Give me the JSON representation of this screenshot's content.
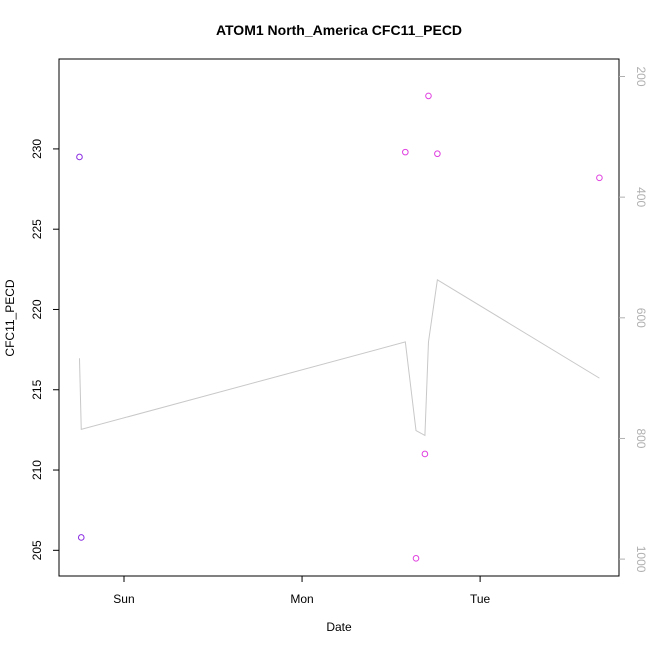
{
  "chart_data": {
    "type": "scatter",
    "title": "ATOM1 North_America CFC11_PECD",
    "xlabel": "Date",
    "ylabel": "CFC11_PECD",
    "x_ticks": [
      "Sun",
      "Mon",
      "Tue"
    ],
    "y_ticks": [
      205,
      210,
      215,
      220,
      225,
      230
    ],
    "y_right_ticks": [
      200,
      400,
      600,
      800,
      1000
    ],
    "xlim_days": [
      -0.365,
      2.78
    ],
    "ylim": [
      203.4,
      235.6
    ],
    "y_right_lim": [
      1028,
      171
    ],
    "grid": false,
    "legend": "none",
    "colors": {
      "points_blue": "#8a2be2",
      "points_magenta": "#e040e0",
      "line": "#c8c8c8",
      "right_axis": "#b0b0b0"
    },
    "series": [
      {
        "kind": "points",
        "color_key": "points_blue",
        "x": [
          -0.25,
          -0.24
        ],
        "y": [
          229.5,
          205.8
        ]
      },
      {
        "kind": "points",
        "color_key": "points_magenta",
        "x": [
          1.58,
          1.64,
          1.69,
          1.71,
          1.76,
          2.67
        ],
        "y": [
          229.8,
          204.5,
          211.0,
          233.3,
          229.7,
          228.2
        ]
      },
      {
        "kind": "line",
        "axis": "right",
        "color_key": "line",
        "x": [
          -0.25,
          -0.24,
          1.58,
          1.64,
          1.69,
          1.71,
          1.76,
          2.67
        ],
        "y": [
          667,
          785,
          640,
          787,
          795,
          640,
          537,
          700
        ]
      }
    ]
  }
}
